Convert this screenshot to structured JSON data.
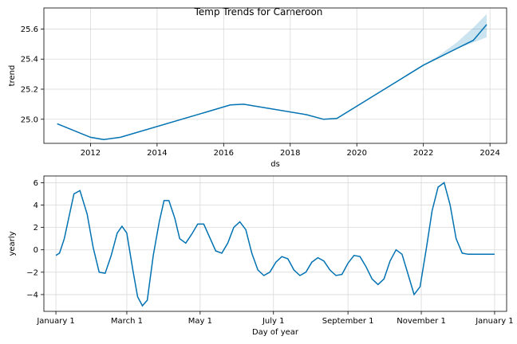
{
  "title": "Temp Trends for Cameroon",
  "chart_data": [
    {
      "type": "line",
      "panel": "trend",
      "xlabel": "ds",
      "ylabel": "trend",
      "xlim": [
        2010.6,
        2024.5
      ],
      "ylim": [
        24.84,
        25.74
      ],
      "x_ticks": [
        2012,
        2014,
        2016,
        2018,
        2020,
        2022,
        2024
      ],
      "x_tick_labels": [
        "2012",
        "2014",
        "2016",
        "2018",
        "2020",
        "2022",
        "2024"
      ],
      "y_ticks": [
        25.0,
        25.2,
        25.4,
        25.6
      ],
      "y_tick_labels": [
        "25.0",
        "25.2",
        "25.4",
        "25.6"
      ],
      "grid": true,
      "series": [
        {
          "x": [
            2011.0,
            2012.0,
            2012.4,
            2012.9,
            2016.2,
            2016.6,
            2018.5,
            2019.0,
            2019.4,
            2022.0,
            2022.5,
            2023.0,
            2023.5,
            2023.9
          ],
          "y": [
            24.97,
            24.88,
            24.865,
            24.88,
            25.095,
            25.1,
            25.03,
            25.0,
            25.005,
            25.36,
            25.415,
            25.47,
            25.525,
            25.63
          ]
        }
      ],
      "uncertainty_band": {
        "x": [
          2022.0,
          2022.5,
          2023.0,
          2023.5,
          2023.9
        ],
        "lower": [
          25.36,
          25.42,
          25.47,
          25.51,
          25.545
        ],
        "upper": [
          25.36,
          25.43,
          25.51,
          25.61,
          25.7
        ]
      }
    },
    {
      "type": "line",
      "panel": "yearly",
      "xlabel": "Day of year",
      "ylabel": "yearly",
      "xlim": [
        -10,
        375
      ],
      "ylim": [
        -5.5,
        6.6
      ],
      "x_ticks": [
        0,
        59,
        120,
        181,
        243,
        304,
        365
      ],
      "x_tick_labels": [
        "January 1",
        "March 1",
        "May 1",
        "July 1",
        "September 1",
        "November 1",
        "January 1"
      ],
      "y_ticks": [
        -4,
        -2,
        0,
        2,
        4,
        6
      ],
      "y_tick_labels": [
        "−4",
        "−2",
        "0",
        "2",
        "4",
        "6"
      ],
      "grid": true,
      "series": [
        {
          "x": [
            0,
            3,
            7,
            11,
            15,
            20,
            26,
            31,
            36,
            41,
            46,
            51,
            55,
            59,
            64,
            68,
            72,
            76,
            81,
            86,
            90,
            94,
            99,
            103,
            108,
            113,
            118,
            123,
            128,
            133,
            138,
            143,
            148,
            153,
            158,
            163,
            168,
            173,
            178,
            183,
            188,
            193,
            198,
            203,
            208,
            213,
            218,
            223,
            228,
            233,
            238,
            243,
            248,
            253,
            258,
            263,
            268,
            273,
            278,
            283,
            288,
            293,
            298,
            303,
            308,
            313,
            318,
            323,
            328,
            333,
            338,
            343,
            348,
            353,
            358,
            362,
            365
          ],
          "y": [
            -0.5,
            -0.3,
            1.0,
            3.0,
            5.0,
            5.3,
            3.2,
            0.2,
            -2.0,
            -2.1,
            -0.5,
            1.5,
            2.1,
            1.5,
            -1.8,
            -4.2,
            -5.0,
            -4.5,
            -0.5,
            2.5,
            4.4,
            4.4,
            2.8,
            1.0,
            0.6,
            1.4,
            2.3,
            2.3,
            1.1,
            -0.1,
            -0.3,
            0.6,
            2.0,
            2.5,
            1.8,
            -0.3,
            -1.8,
            -2.3,
            -2.0,
            -1.1,
            -0.6,
            -0.8,
            -1.8,
            -2.3,
            -2.0,
            -1.1,
            -0.7,
            -1.0,
            -1.8,
            -2.3,
            -2.2,
            -1.2,
            -0.5,
            -0.6,
            -1.5,
            -2.6,
            -3.1,
            -2.6,
            -1.0,
            0.0,
            -0.4,
            -2.2,
            -4.0,
            -3.3,
            0.0,
            3.5,
            5.6,
            6.0,
            4.0,
            1.0,
            -0.3,
            -0.4,
            -0.4,
            -0.4,
            -0.4,
            -0.4,
            -0.4
          ]
        }
      ]
    }
  ]
}
